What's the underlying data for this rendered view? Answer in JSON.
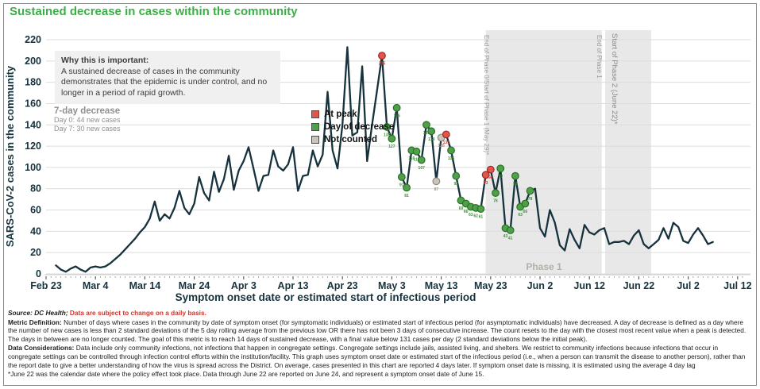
{
  "title": "Sustained decrease in cases within the community",
  "info_box": {
    "heading": "Why this is important:",
    "body": "A sustained decrease of cases in the community demonstrates that the epidemic is under control, and no longer in a period of rapid growth."
  },
  "seven_day": {
    "heading": "7-day decrease",
    "day0": "Day 0: 44 new cases",
    "day7": "Day 7: 30 new cases"
  },
  "legend": {
    "at_peak": "At peak",
    "day_of_decrease": "Day of decrease",
    "not_counted": "Not counted"
  },
  "colors": {
    "title_green": "#3dae49",
    "line": "#16323d",
    "peak_red": "#e4544a",
    "decrease_green": "#4ea149",
    "not_counted_gray": "#cac4bc",
    "band_gray": "#e8e8e8",
    "source_red": "#d93025"
  },
  "annotations": {
    "phase1_band_label": "Phase 1",
    "line1": "End of Phase 0/Start of Phase 1 (May 29)*",
    "line2": "End of Phase 1",
    "line3": "Start of Phase 2 (June 22)*",
    "bands": [
      {
        "start_day": 89.0,
        "end_day": 112.5
      },
      {
        "start_day": 113.2,
        "end_day": 122.5
      }
    ]
  },
  "chart_data": {
    "type": "line",
    "xlabel": "Symptom onset date or estimated start of infectious period",
    "ylabel": "SARS-CoV-2 cases in the community",
    "ylim": [
      0,
      220
    ],
    "y_tick_step": 20,
    "grid": true,
    "x_ticks": [
      {
        "label": "Feb 23",
        "day": 0
      },
      {
        "label": "Mar 4",
        "day": 10
      },
      {
        "label": "Mar 14",
        "day": 20
      },
      {
        "label": "Mar 24",
        "day": 30
      },
      {
        "label": "Apr 3",
        "day": 40
      },
      {
        "label": "Apr 13",
        "day": 50
      },
      {
        "label": "Apr 23",
        "day": 60
      },
      {
        "label": "May 3",
        "day": 70
      },
      {
        "label": "May 13",
        "day": 80
      },
      {
        "label": "May 23",
        "day": 90
      },
      {
        "label": "Jun 2",
        "day": 100
      },
      {
        "label": "Jun 12",
        "day": 110
      },
      {
        "label": "Jun 22",
        "day": 120
      },
      {
        "label": "Jul 2",
        "day": 130
      },
      {
        "label": "Jul 12",
        "day": 140
      }
    ],
    "start_date": "Feb 25",
    "start_day": 2,
    "values": [
      8,
      4,
      2,
      5,
      7,
      4,
      2,
      6,
      7,
      6,
      7,
      10,
      14,
      18,
      23,
      28,
      33,
      39,
      44,
      52,
      68,
      50,
      56,
      52,
      62,
      78,
      62,
      56,
      66,
      91,
      76,
      69,
      96,
      77,
      89,
      111,
      79,
      97,
      106,
      119,
      99,
      78,
      92,
      93,
      116,
      101,
      97,
      103,
      119,
      78,
      92,
      93,
      116,
      101,
      112,
      171,
      116,
      99,
      140,
      213,
      130,
      133,
      195,
      106,
      140,
      172,
      205,
      138,
      127,
      156,
      91,
      81,
      116,
      115,
      107,
      140,
      134,
      87,
      128,
      131,
      116,
      92,
      69,
      66,
      63,
      62,
      61,
      93,
      98,
      76,
      99,
      43,
      41,
      92,
      63,
      66,
      78,
      80,
      43,
      35,
      60,
      48,
      27,
      22,
      42,
      32,
      24,
      46,
      39,
      37,
      41,
      43,
      28,
      30,
      30,
      31,
      28,
      36,
      41,
      28,
      24,
      28,
      32,
      43,
      33,
      48,
      44,
      31,
      29,
      37,
      43,
      36,
      28,
      30
    ],
    "marker_offset": 66,
    "markers": "rggggggggggnnrgggggggrrgggggggg"
  },
  "footer": {
    "source_bold": "Source: DC Health;",
    "source_red": "Data are subject to change on a daily basis.",
    "metric_label": "Metric Definition:",
    "metric_text": " Number of days where cases in the community by date of symptom onset (for symptomatic individuals) or estimated start of infectious period (for asymptomatic individuals) have decreased. A day of decrease is defined as a day where the number of new cases is less than 2 standard deviations of the 5 day rolling average from the previous low OR there has not been 3 days of consecutive increase. The count resets to the day with the closest most recent value when a peak is detected. The days in between are no longer counted. The goal of this metric is to reach 14 days of sustained decrease, with a final value below 131 cases per day (2 standard deviations below the initial peak).",
    "considerations_label": "Data Considerations:",
    "considerations_text": " Data include only community infections, not infections that happen in congregate settings. Congregate settings include jails, assisted living, and shelters. We restrict to community infections because infections that occur in congregate settings can be controlled through infection control efforts within the institution/facility. This graph uses symptom onset date or estimated start of the infectious period (i.e., when a person can transmit the disease to another person), rather than the report date to give a better understanding of how the virus is spread across the District. On average, cases presented in this chart are reported 4 days later. If symptom onset date is missing, it is estimated using the average 4 day lag",
    "footnote": "*June 22 was the calendar date where the policy effect took place. Data through June 22 are reported on June 24, and represent a symptom onset date of June 15."
  }
}
